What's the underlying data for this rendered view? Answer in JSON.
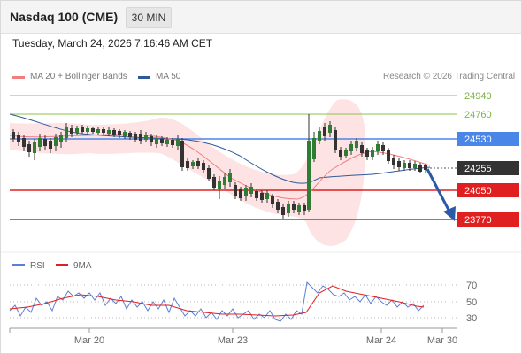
{
  "header": {
    "instrument": "Nasdaq 100 (CME)",
    "timeframe": "30 MIN"
  },
  "datetime": "Tuesday, March 24, 2026 7:16:46 AM CET",
  "legend": {
    "ma20": "MA 20 + Bollinger Bands",
    "ma50": "MA 50",
    "ma20_color": "#f08080",
    "ma50_color": "#2e5a9c"
  },
  "copyright": "Research © 2026 Trading Central",
  "price_levels": [
    {
      "label": "24940",
      "style": "plain",
      "color": "#7cb342"
    },
    {
      "label": "24760",
      "style": "plain",
      "color": "#7cb342"
    },
    {
      "label": "24530",
      "style": "box",
      "color": "#4a86e8"
    },
    {
      "label": "24255",
      "style": "box",
      "color": "#333333"
    },
    {
      "label": "24050",
      "style": "box",
      "color": "#e02020"
    },
    {
      "label": "23770",
      "style": "box",
      "color": "#e02020"
    }
  ],
  "rsi": {
    "legend_rsi": "RSI",
    "legend_ma": "9MA",
    "rsi_color": "#5b7fd6",
    "ma_color": "#e02020",
    "levels": [
      "70",
      "50",
      "30"
    ]
  },
  "x_axis": [
    "Mar 20",
    "Mar 23",
    "Mar 24",
    "Mar 30"
  ]
}
